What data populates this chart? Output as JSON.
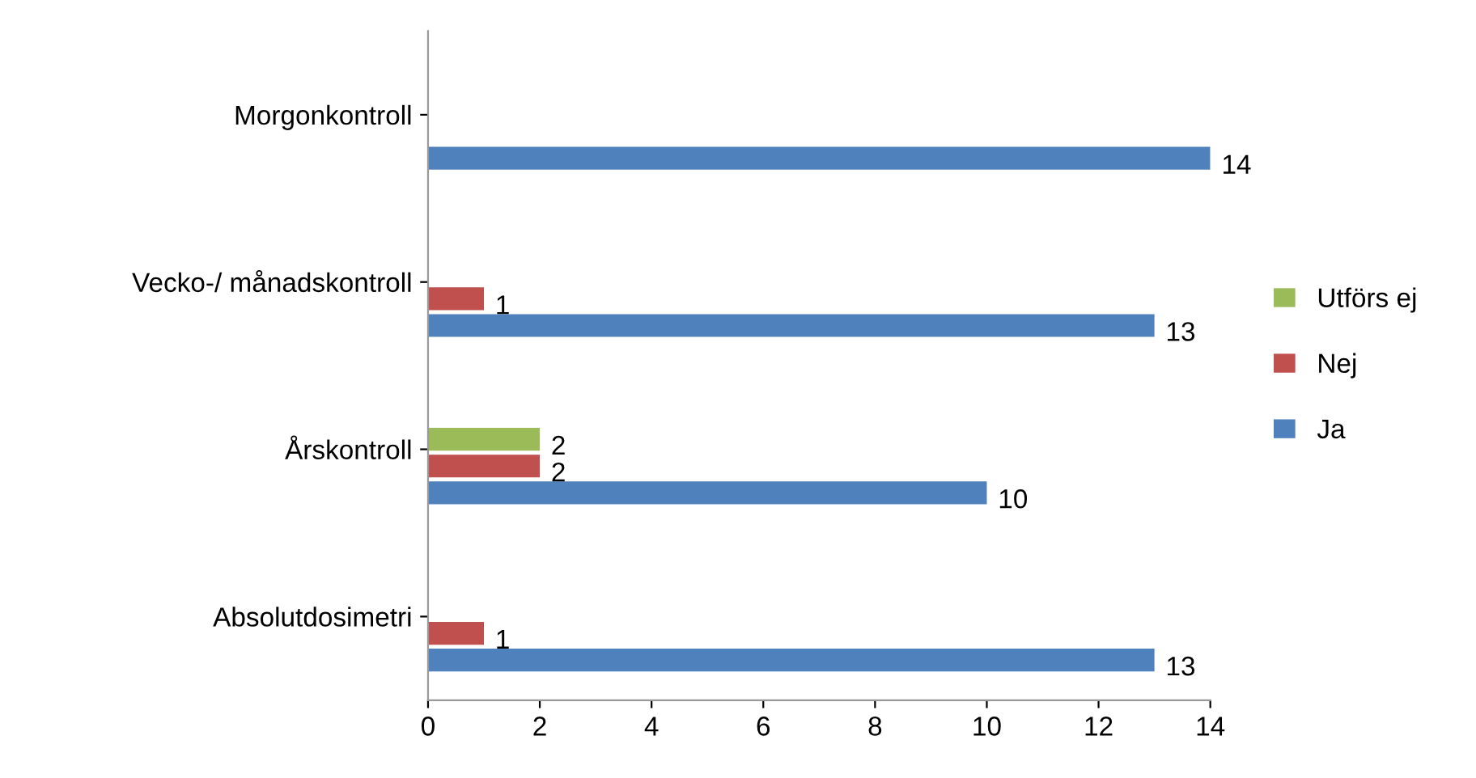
{
  "chart_data": {
    "type": "bar",
    "orientation": "horizontal",
    "categories": [
      "Morgonkontroll",
      "Vecko-/ månadskontroll",
      "Årskontroll",
      "Absolutdosimetri"
    ],
    "series": [
      {
        "name": "Ja",
        "color": "#4f81bd",
        "values": [
          14,
          13,
          10,
          13
        ]
      },
      {
        "name": "Nej",
        "color": "#c0504d",
        "values": [
          null,
          1,
          2,
          1
        ]
      },
      {
        "name": "Utförs ej",
        "color": "#9bbb59",
        "values": [
          null,
          null,
          2,
          null
        ]
      }
    ],
    "xlim": [
      0,
      14
    ],
    "xticks": [
      0,
      2,
      4,
      6,
      8,
      10,
      12,
      14
    ],
    "data_labels": true,
    "legend": "right",
    "grid": false
  }
}
